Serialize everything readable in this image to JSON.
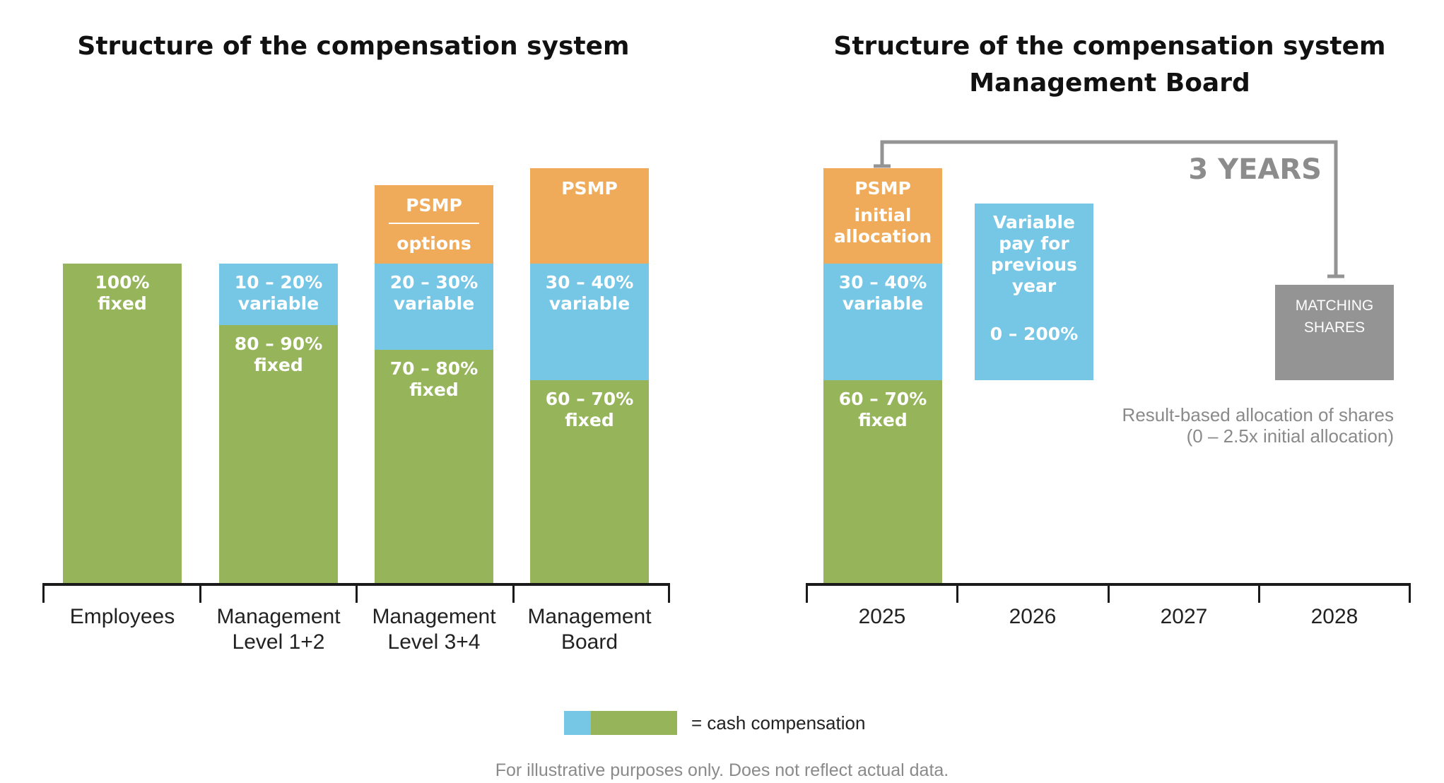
{
  "left": {
    "title": "Structure of the compensation system",
    "bars": [
      {
        "segments": [
          {
            "lines": [
              "100%",
              "fixed"
            ]
          }
        ]
      },
      {
        "segments": [
          {
            "lines": [
              "10 – 20%",
              "variable"
            ]
          },
          {
            "lines": [
              "80 – 90%",
              "fixed"
            ]
          }
        ]
      },
      {
        "segments": [
          {
            "lines": [
              "PSMP",
              "options"
            ]
          },
          {
            "lines": [
              "20 – 30%",
              "variable"
            ]
          },
          {
            "lines": [
              "70 – 80%",
              "fixed"
            ]
          }
        ]
      },
      {
        "segments": [
          {
            "lines": [
              "PSMP"
            ]
          },
          {
            "lines": [
              "30 – 40%",
              "variable"
            ]
          },
          {
            "lines": [
              "60 – 70%",
              "fixed"
            ]
          }
        ]
      }
    ],
    "categories": [
      {
        "lines": [
          "Employees"
        ]
      },
      {
        "lines": [
          "Management",
          "Level 1+2"
        ]
      },
      {
        "lines": [
          "Management",
          "Level 3+4"
        ]
      },
      {
        "lines": [
          "Management",
          "Board"
        ]
      }
    ]
  },
  "right": {
    "title_line1": "Structure of the compensation system",
    "title_line2": "Management Board",
    "period_label": "3 YEARS",
    "bar_2025": [
      {
        "lines": [
          "PSMP",
          "initial",
          "allocation"
        ]
      },
      {
        "lines": [
          "30 – 40%",
          "variable"
        ]
      },
      {
        "lines": [
          "60 – 70%",
          "fixed"
        ]
      }
    ],
    "bar_2026": {
      "lines": [
        "Variable",
        "pay for",
        "previous",
        "year",
        "0 – 200%"
      ]
    },
    "matching_shares": {
      "lines": [
        "MATCHING",
        "SHARES"
      ]
    },
    "result_note": {
      "lines": [
        "Result-based allocation of shares",
        "(0 – 2.5x initial allocation)"
      ]
    },
    "years": [
      "2025",
      "2026",
      "2027",
      "2028"
    ]
  },
  "legend": {
    "label": "= cash compensation"
  },
  "footnote": "For illustrative purposes only. Does not reflect actual data.",
  "colors": {
    "fixed": "#96b55a",
    "variable": "#76c6e6",
    "psmp": "#efaa5a",
    "matching": "#949494"
  }
}
